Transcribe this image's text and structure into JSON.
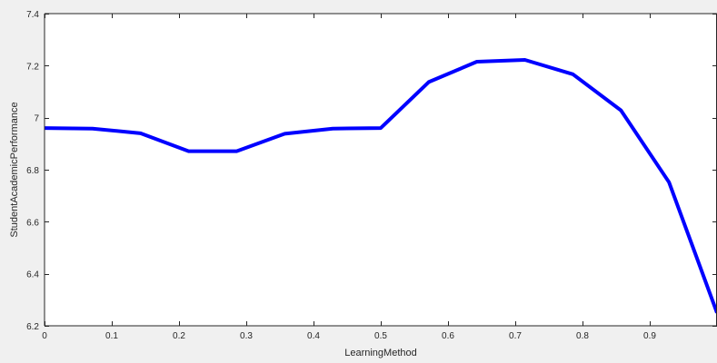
{
  "chart_data": {
    "type": "line",
    "title": "",
    "xlabel": "LearningMethod",
    "ylabel": "StudentAcademicPerformance",
    "xlim": [
      0,
      1
    ],
    "ylim": [
      6.2,
      7.4
    ],
    "xticks": [
      0,
      0.1,
      0.2,
      0.3,
      0.4,
      0.5,
      0.6,
      0.7,
      0.8,
      0.9,
      1
    ],
    "xtick_labels": [
      "0",
      "0.1",
      "0.2",
      "0.3",
      "0.4",
      "0.5",
      "0.6",
      "0.7",
      "0.8",
      "0.9",
      ""
    ],
    "yticks": [
      6.2,
      6.4,
      6.6,
      6.8,
      7.0,
      7.2,
      7.4
    ],
    "ytick_labels": [
      "6.2",
      "6.4",
      "6.6",
      "6.8",
      "7",
      "7.2",
      "7.4"
    ],
    "grid": false,
    "series": [
      {
        "color": "#0000ff",
        "x": [
          0,
          0.0714,
          0.1429,
          0.2143,
          0.2857,
          0.3571,
          0.4286,
          0.5,
          0.5714,
          0.6429,
          0.7143,
          0.7857,
          0.8571,
          0.9286,
          1
        ],
        "y": [
          6.96,
          6.958,
          6.94,
          6.871,
          6.871,
          6.938,
          6.958,
          6.96,
          7.137,
          7.215,
          7.222,
          7.167,
          7.028,
          6.752,
          6.25
        ]
      }
    ]
  }
}
